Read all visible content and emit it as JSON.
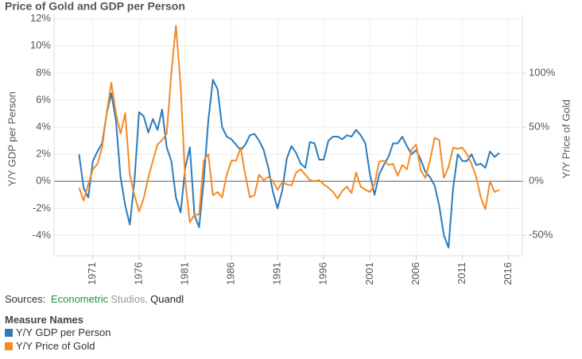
{
  "chart_data": {
    "type": "line",
    "title": "Price of Gold and GDP per Person",
    "ylabel": "Y/Y GDP per Person",
    "y2label": "Y/Y Price of Gold",
    "x": [
      1969.5,
      1970,
      1970.5,
      1971,
      1971.5,
      1972,
      1972.5,
      1973,
      1973.5,
      1974,
      1974.5,
      1975,
      1975.5,
      1976,
      1976.5,
      1977,
      1977.5,
      1978,
      1978.5,
      1979,
      1979.5,
      1980,
      1980.5,
      1981,
      1981.5,
      1982,
      1982.5,
      1983,
      1983.5,
      1984,
      1984.5,
      1985,
      1985.5,
      1986,
      1986.5,
      1987,
      1987.5,
      1988,
      1988.5,
      1989,
      1989.5,
      1990,
      1990.5,
      1991,
      1991.5,
      1992,
      1992.5,
      1993,
      1993.5,
      1994,
      1994.5,
      1995,
      1995.5,
      1996,
      1996.5,
      1997,
      1997.5,
      1998,
      1998.5,
      1999,
      1999.5,
      2000,
      2000.5,
      2001,
      2001.5,
      2002,
      2002.5,
      2003,
      2003.5,
      2004,
      2004.5,
      2005,
      2005.5,
      2006,
      2006.5,
      2007,
      2007.5,
      2008,
      2008.5,
      2009,
      2009.5,
      2010,
      2010.5,
      2011,
      2011.5,
      2012,
      2012.5,
      2013,
      2013.5,
      2014,
      2014.5,
      2015
    ],
    "series": [
      {
        "name": "Y/Y GDP per Person",
        "color": "#2b7bba",
        "axis": "y",
        "values": [
          2.0,
          -0.5,
          -1.2,
          1.5,
          2.2,
          2.8,
          5.0,
          6.5,
          4.5,
          0.3,
          -1.8,
          -3.2,
          0.0,
          5.1,
          4.8,
          3.6,
          4.6,
          3.8,
          5.3,
          2.5,
          1.5,
          -1.2,
          -2.3,
          1.0,
          2.5,
          -2.5,
          -3.4,
          0.0,
          4.5,
          7.5,
          6.8,
          4.0,
          3.3,
          3.1,
          2.7,
          2.3,
          2.7,
          3.4,
          3.5,
          3.0,
          2.3,
          1.0,
          -0.8,
          -2.0,
          -0.7,
          1.7,
          2.6,
          2.1,
          1.3,
          1.0,
          2.9,
          2.8,
          1.6,
          1.6,
          3.0,
          3.3,
          3.3,
          3.1,
          3.4,
          3.3,
          3.8,
          3.4,
          2.8,
          0.5,
          -1.0,
          0.5,
          1.2,
          1.8,
          2.8,
          2.8,
          3.3,
          2.6,
          2.0,
          2.3,
          1.6,
          0.7,
          0.3,
          -0.3,
          -1.8,
          -4.0,
          -4.9,
          -0.5,
          2.0,
          1.5,
          1.5,
          2.0,
          1.2,
          1.3,
          1.0,
          2.2,
          1.8,
          2.1
        ]
      },
      {
        "name": "Y/Y Price of Gold",
        "color": "#f58a24",
        "axis": "y2",
        "values": [
          -6,
          -18,
          -3,
          11,
          16,
          31,
          63,
          91,
          63,
          44,
          63,
          6,
          -13,
          -28,
          -16,
          3,
          19,
          34,
          38,
          44,
          100,
          144,
          88,
          0,
          -38,
          -31,
          -31,
          19,
          25,
          -13,
          -10,
          -15,
          6,
          19,
          19,
          31,
          6,
          -15,
          -13,
          6,
          1,
          4,
          0,
          -8,
          -1,
          -3,
          -4,
          8,
          11,
          6,
          1,
          0,
          1,
          -3,
          -6,
          -10,
          -16,
          -9,
          -5,
          -11,
          8,
          -5,
          -8,
          -10,
          -3,
          18,
          19,
          15,
          16,
          5,
          15,
          11,
          29,
          34,
          10,
          3,
          19,
          40,
          38,
          3,
          13,
          31,
          30,
          31,
          25,
          16,
          4,
          -15,
          -26,
          0,
          -10,
          -8
        ]
      }
    ],
    "xlim": [
      1966.8,
      2017.5
    ],
    "xticks": [
      1971,
      1976,
      1981,
      1986,
      1991,
      1996,
      2001,
      2006,
      2011,
      2016
    ],
    "ylim": [
      -5.5,
      12.1
    ],
    "yticks": [
      {
        "value": -4,
        "label": "-4%"
      },
      {
        "value": -2,
        "label": "-2%"
      },
      {
        "value": 0,
        "label": "0%"
      },
      {
        "value": 2,
        "label": "2%"
      },
      {
        "value": 4,
        "label": "4%"
      },
      {
        "value": 6,
        "label": "6%"
      },
      {
        "value": 8,
        "label": "8%"
      },
      {
        "value": 10,
        "label": "10%"
      },
      {
        "value": 12,
        "label": "12%"
      }
    ],
    "y2lim": [
      -69,
      151.5
    ],
    "y2ticks": [
      {
        "value": -50,
        "label": "-50%"
      },
      {
        "value": 0,
        "label": "0%"
      },
      {
        "value": 50,
        "label": "50%"
      },
      {
        "value": 100,
        "label": "100%"
      }
    ],
    "grid": true,
    "sources": {
      "label": "Sources:",
      "parts": [
        {
          "text": "Econometric",
          "color": "#2e8b3e"
        },
        {
          "text": "Studios,",
          "color": "#999999"
        },
        {
          "text": "Quandl",
          "color": "#222222"
        }
      ]
    },
    "legend_title": "Measure Names"
  }
}
